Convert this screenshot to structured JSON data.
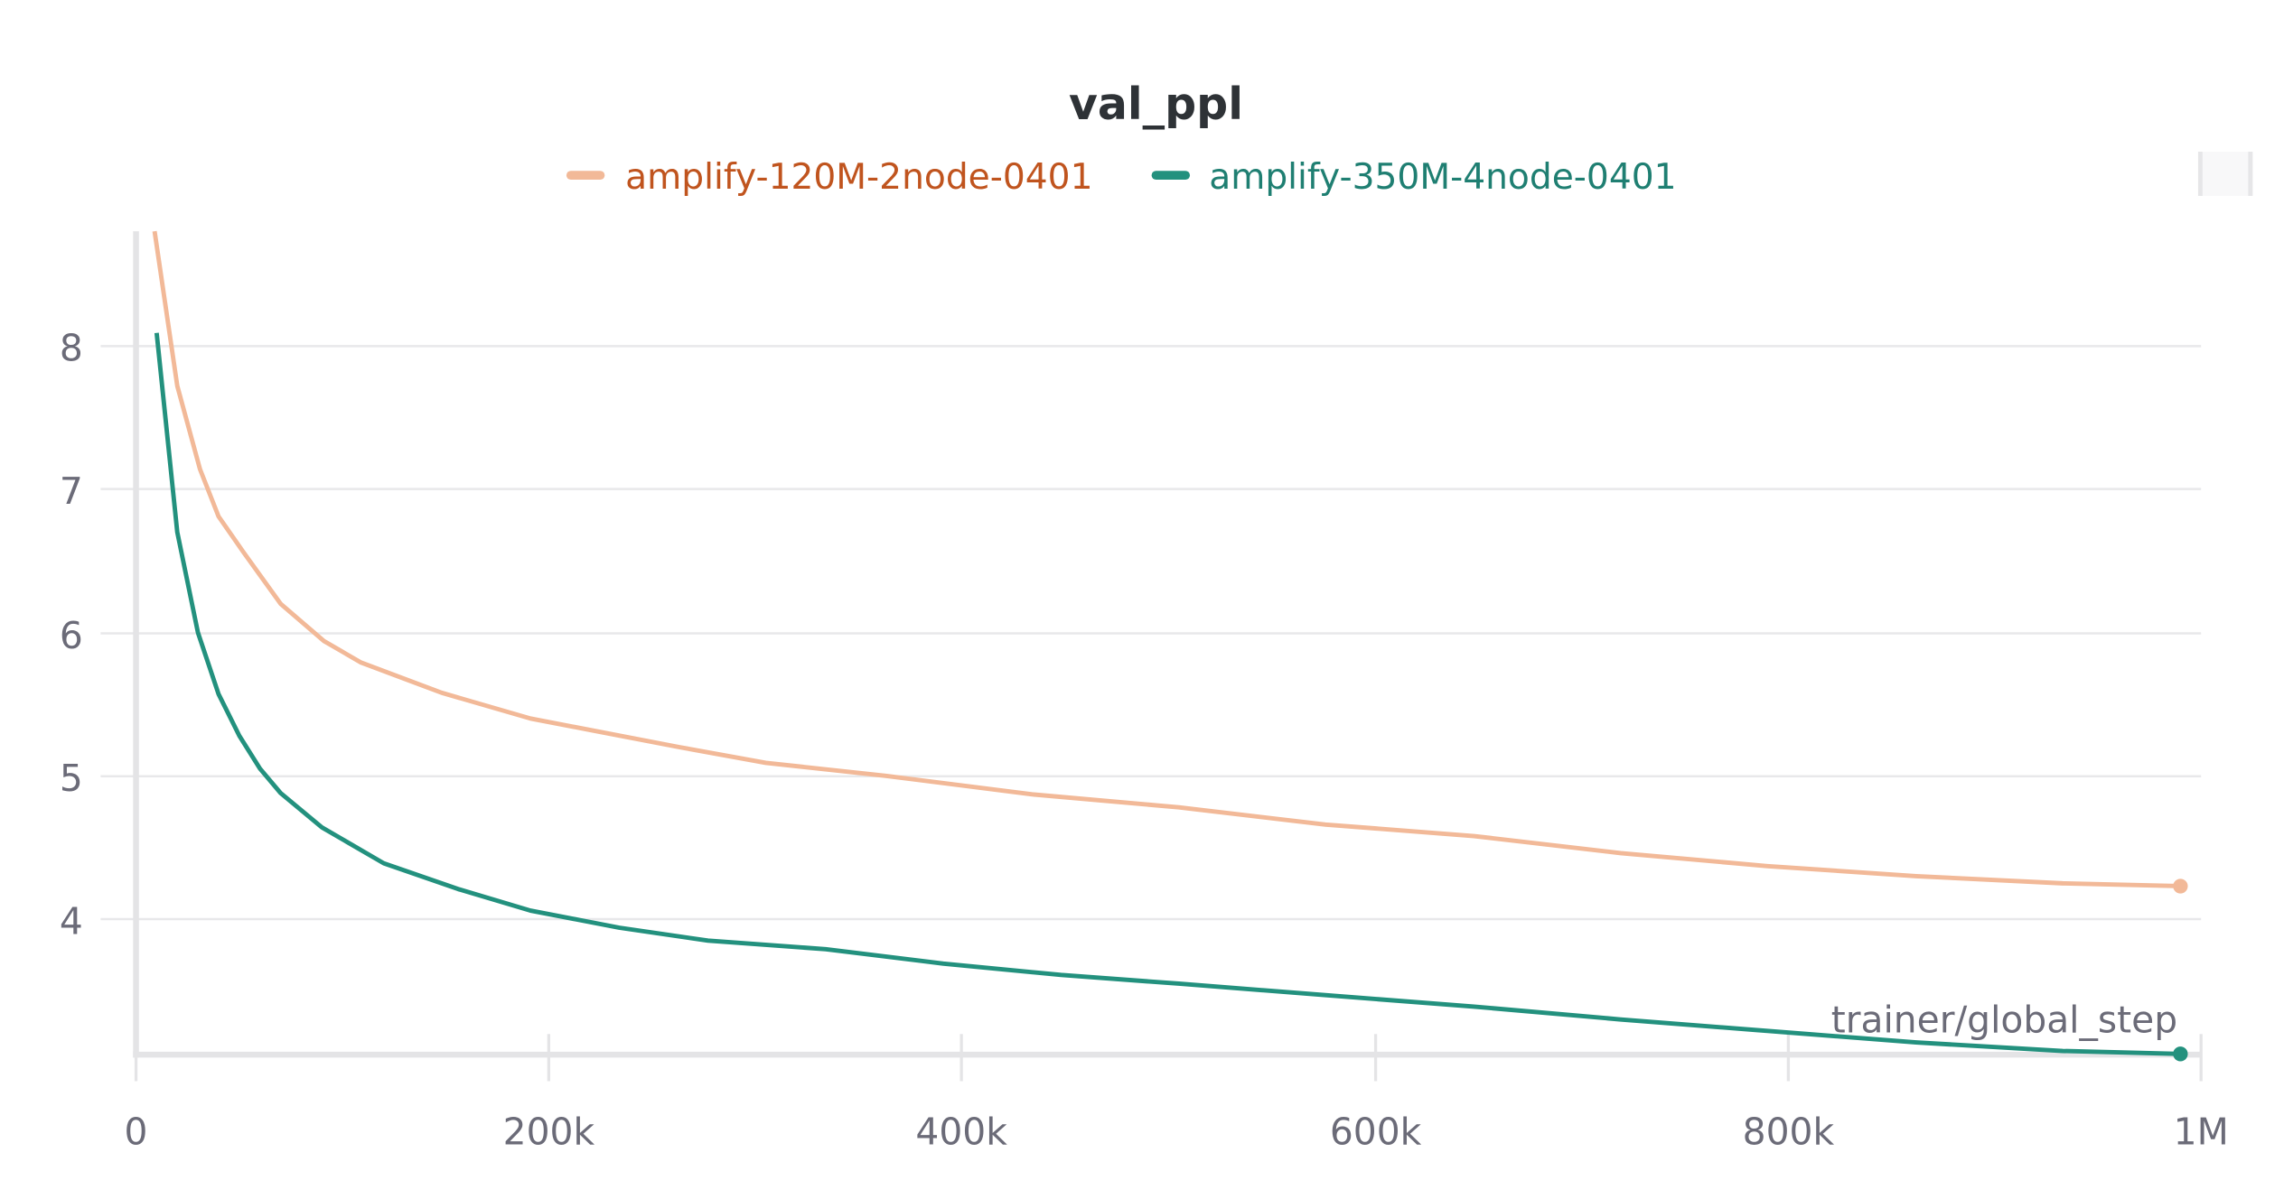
{
  "panel": {
    "title": "val_ppl",
    "legend": [
      {
        "label": "amplify-120M-2node-0401",
        "swatch_color": "#f2b998",
        "text_color": "#c0541e"
      },
      {
        "label": "amplify-350M-4node-0401",
        "swatch_color": "#23917e",
        "text_color": "#1f7f72"
      }
    ],
    "x_axis_label": "trainer/global_step",
    "x_ticks": [
      "0",
      "200k",
      "400k",
      "600k",
      "800k",
      "1M"
    ],
    "y_ticks": [
      "8",
      "7",
      "6",
      "5",
      "4"
    ]
  },
  "chart_data": {
    "type": "line",
    "title": "val_ppl",
    "xlabel": "trainer/global_step",
    "ylabel": "",
    "xlim": [
      0,
      1000000
    ],
    "ylim": [
      3.05,
      8.8
    ],
    "x_tick_labels": [
      "0",
      "200k",
      "400k",
      "600k",
      "800k",
      "1M"
    ],
    "y_tick_labels": [
      "4",
      "5",
      "6",
      "7",
      "8"
    ],
    "grid": true,
    "legend_position": "top",
    "series": [
      {
        "name": "amplify-120M-2node-0401",
        "color": "#f2b998",
        "x": [
          9000,
          20000,
          31000,
          40000,
          52000,
          70000,
          91000,
          109000,
          148000,
          191000,
          220000,
          263000,
          305000,
          363000,
          434000,
          505000,
          576000,
          648000,
          719000,
          790000,
          862000,
          933000,
          990000
        ],
        "y": [
          8.8,
          7.72,
          7.14,
          6.81,
          6.56,
          6.2,
          5.94,
          5.79,
          5.58,
          5.4,
          5.32,
          5.2,
          5.09,
          5.0,
          4.87,
          4.78,
          4.66,
          4.58,
          4.46,
          4.37,
          4.3,
          4.25,
          4.23
        ]
      },
      {
        "name": "amplify-350M-4node-0401",
        "color": "#23917e",
        "x": [
          10000,
          20000,
          30000,
          40000,
          50000,
          60000,
          70000,
          90000,
          120000,
          156000,
          191000,
          234000,
          277000,
          334000,
          391000,
          448000,
          505000,
          576000,
          648000,
          719000,
          790000,
          862000,
          933000,
          990000
        ],
        "y": [
          8.09,
          6.7,
          6.0,
          5.57,
          5.28,
          5.05,
          4.88,
          4.64,
          4.39,
          4.21,
          4.06,
          3.94,
          3.85,
          3.79,
          3.69,
          3.61,
          3.55,
          3.47,
          3.39,
          3.3,
          3.22,
          3.14,
          3.08,
          3.06
        ]
      }
    ]
  }
}
